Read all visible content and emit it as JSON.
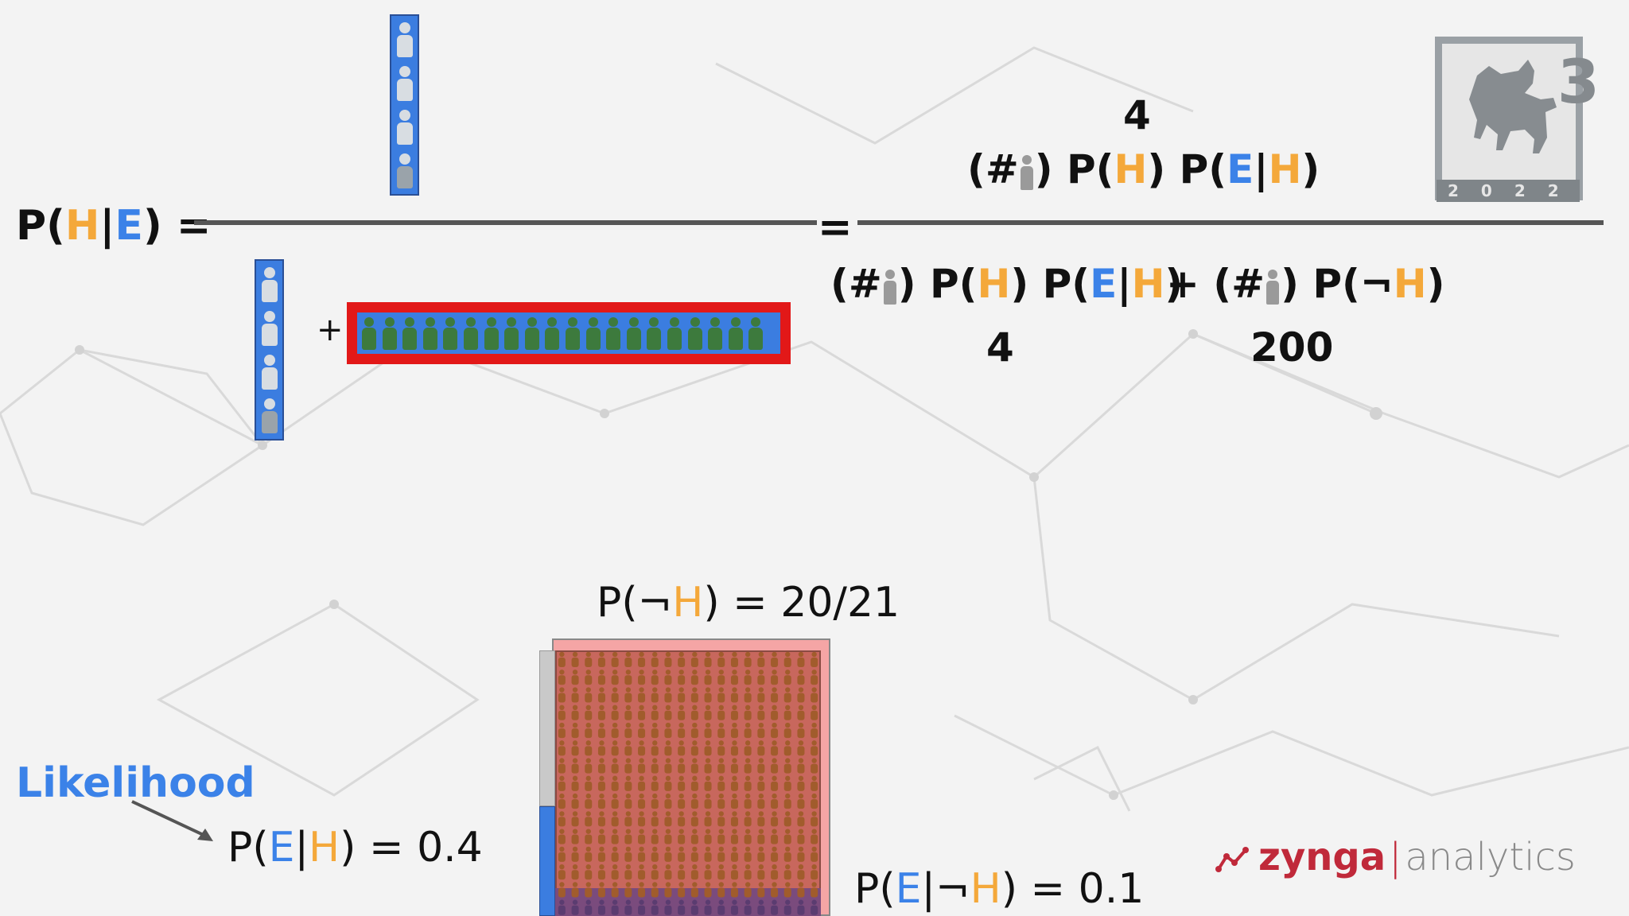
{
  "formula": {
    "lhs_prefix": "P(",
    "lhs_h": "H",
    "lhs_bar": "|",
    "lhs_e": "E",
    "lhs_suffix": ") =",
    "equals": "=",
    "plus": "+",
    "num_value": "4",
    "num_open": "(#",
    "num_close": ")",
    "p_open": "P(",
    "h": "H",
    "close_space": ") ",
    "close": ")",
    "bar": "|",
    "e": "E",
    "plus_open": "+ (#",
    "not_sym": "¬",
    "den_left_value": "4",
    "den_right_value": "200"
  },
  "labels": {
    "prior_not": {
      "prefix": "P(",
      "not": "¬",
      "h": "H",
      "suffix": ") = 20/21"
    },
    "likelihood_title": "Likelihood",
    "likelihood_eq": {
      "prefix": "P(",
      "e": "E",
      "bar": "|",
      "h": "H",
      "suffix": ") = 0.4"
    },
    "likelihood_not": {
      "prefix": "P(",
      "e": "E",
      "bar": "|",
      "not": "¬",
      "h": "H",
      "suffix": ") = 0.1"
    }
  },
  "logo": {
    "digit": "3",
    "year": "2022"
  },
  "brand": {
    "name": "zynga",
    "sep": "|",
    "suffix": "analytics"
  },
  "colors": {
    "h": "#f4a83a",
    "e": "#3b82e8",
    "red": "#e21818",
    "blue_bar": "#3b7de0"
  },
  "icons": [
    "person-icon",
    "dog-logo-icon",
    "chart-line-icon",
    "arrow-icon"
  ]
}
